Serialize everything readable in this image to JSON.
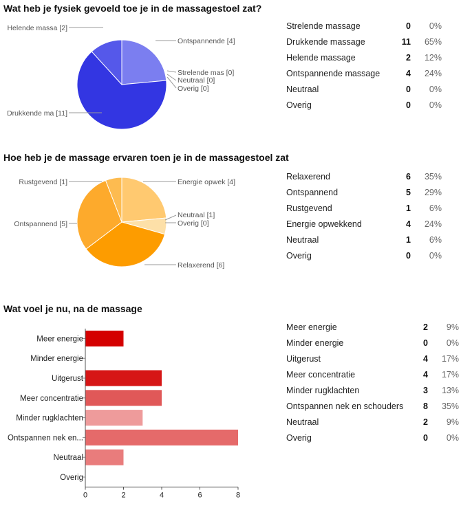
{
  "questions": [
    {
      "title": "Wat heb je fysiek gevoeld toe je in de massagestoel zat?",
      "rows": [
        {
          "label": "Strelende massage",
          "count": "0",
          "percent": "0%"
        },
        {
          "label": "Drukkende massage",
          "count": "11",
          "percent": "65%"
        },
        {
          "label": "Helende massage",
          "count": "2",
          "percent": "12%"
        },
        {
          "label": "Ontspannende massage",
          "count": "4",
          "percent": "24%"
        },
        {
          "label": "Neutraal",
          "count": "0",
          "percent": "0%"
        },
        {
          "label": "Overig",
          "count": "0",
          "percent": "0%"
        }
      ]
    },
    {
      "title": "Hoe heb je de massage ervaren toen je in de massagestoel zat",
      "rows": [
        {
          "label": "Relaxerend",
          "count": "6",
          "percent": "35%"
        },
        {
          "label": "Ontspannend",
          "count": "5",
          "percent": "29%"
        },
        {
          "label": "Rustgevend",
          "count": "1",
          "percent": "6%"
        },
        {
          "label": "Energie opwekkend",
          "count": "4",
          "percent": "24%"
        },
        {
          "label": "Neutraal",
          "count": "1",
          "percent": "6%"
        },
        {
          "label": "Overig",
          "count": "0",
          "percent": "0%"
        }
      ]
    },
    {
      "title": "Wat voel je nu, na de massage",
      "rows": [
        {
          "label": "Meer energie",
          "count": "2",
          "percent": "9%"
        },
        {
          "label": "Minder energie",
          "count": "0",
          "percent": "0%"
        },
        {
          "label": "Uitgerust",
          "count": "4",
          "percent": "17%"
        },
        {
          "label": "Meer concentratie",
          "count": "4",
          "percent": "17%"
        },
        {
          "label": "Minder rugklachten",
          "count": "3",
          "percent": "13%"
        },
        {
          "label": "Ontspannen nek en schouders",
          "count": "8",
          "percent": "35%"
        },
        {
          "label": "Neutraal",
          "count": "2",
          "percent": "9%"
        },
        {
          "label": "Overig",
          "count": "0",
          "percent": "0%"
        }
      ]
    }
  ],
  "chart_data": [
    {
      "type": "pie",
      "slices": [
        {
          "label": "Ontspannende",
          "value": 4,
          "callout": "Ontspannende  [4]",
          "color": "#7b7ef0"
        },
        {
          "label": "Strelende massage",
          "value": 0,
          "callout": "Strelende mas [0]",
          "color": "#3b40e0"
        },
        {
          "label": "Neutraal",
          "value": 0,
          "callout": "Neutraal [0]",
          "color": "#5a5ee6"
        },
        {
          "label": "Overig",
          "value": 0,
          "callout": "Overig [0]",
          "color": "#4a4ee4"
        },
        {
          "label": "Drukkende massage",
          "value": 11,
          "callout": "Drukkende ma [11]",
          "color": "#3336e2"
        },
        {
          "label": "Helende massa",
          "value": 2,
          "callout": "Helende massa [2]",
          "color": "#5558ea"
        }
      ]
    },
    {
      "type": "pie",
      "slices": [
        {
          "label": "Energie opwekkend",
          "value": 4,
          "callout": "Energie opwek [4]",
          "color": "#ffc970"
        },
        {
          "label": "Neutraal",
          "value": 1,
          "callout": "Neutraal [1]",
          "color": "#fde0a8"
        },
        {
          "label": "Overig",
          "value": 0,
          "callout": "Overig [0]",
          "color": "#fcd58e"
        },
        {
          "label": "Relaxerend",
          "value": 6,
          "callout": "Relaxerend [6]",
          "color": "#fd9c00"
        },
        {
          "label": "Ontspannend",
          "value": 5,
          "callout": "Ontspannend [5]",
          "color": "#fdaa2c"
        },
        {
          "label": "Rustgevend",
          "value": 1,
          "callout": "Rustgevend [1]",
          "color": "#fdbb50"
        }
      ]
    },
    {
      "type": "bar",
      "orientation": "horizontal",
      "categories": [
        "Meer energie",
        "Minder energie",
        "Uitgerust",
        "Meer concentratie",
        "Minder rugklachten",
        "Ontspannen nek en...",
        "Neutraal",
        "Overig"
      ],
      "values": [
        2,
        0,
        4,
        4,
        3,
        8,
        2,
        0
      ],
      "colors": [
        "#d40000",
        "#d40000",
        "#d61616",
        "#e05858",
        "#ee9b9b",
        "#e56a6a",
        "#e97c7c",
        "#e97c7c"
      ],
      "xlim": [
        0,
        8
      ],
      "xticks": [
        "0",
        "2",
        "4",
        "6",
        "8"
      ],
      "grid": false
    }
  ]
}
